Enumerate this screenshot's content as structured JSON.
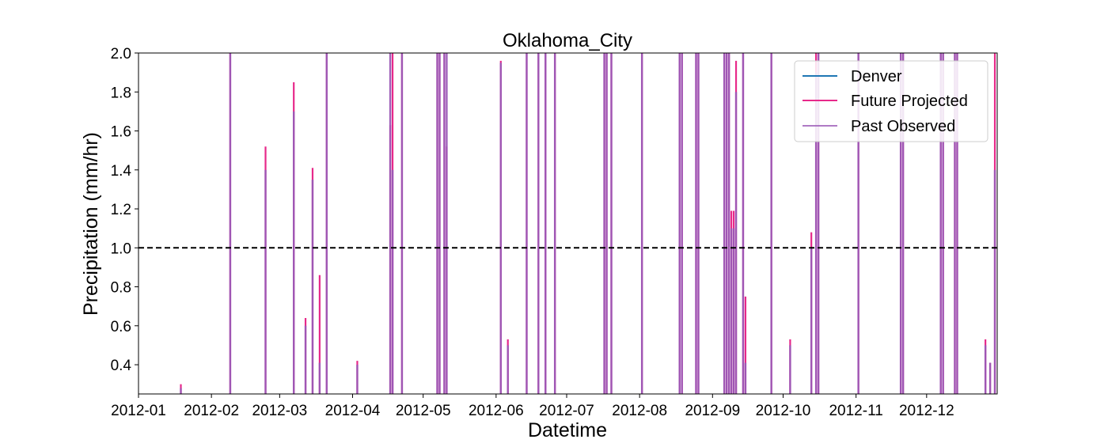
{
  "chart_data": {
    "type": "line",
    "title": "Oklahoma_City",
    "xlabel": "Datetime",
    "ylabel": "Precipitation (mm/hr)",
    "xlim": [
      "2012-01-01",
      "2012-12-31"
    ],
    "ylim": [
      0.25,
      2.0
    ],
    "x_ticks": [
      "2012-01",
      "2012-02",
      "2012-03",
      "2012-04",
      "2012-05",
      "2012-06",
      "2012-07",
      "2012-08",
      "2012-09",
      "2012-10",
      "2012-11",
      "2012-12"
    ],
    "y_ticks": [
      "0.4",
      "0.6",
      "0.8",
      "1.0",
      "1.2",
      "1.4",
      "1.6",
      "1.8",
      "2.0"
    ],
    "threshold": {
      "value": 1.0,
      "style": "dashed",
      "color": "#000000"
    },
    "legend": {
      "placement": "top-right",
      "entries": [
        "Denver",
        "Future Projected",
        "Past Observed"
      ]
    },
    "grid": false,
    "series": [
      {
        "name": "Denver",
        "color": "#1f77b4",
        "events": []
      },
      {
        "name": "Future Projected",
        "color": "#e7298a",
        "events": [
          [
            "2012-01-19",
            0.3
          ],
          [
            "2012-02-09",
            2.5
          ],
          [
            "2012-02-24",
            1.52
          ],
          [
            "2012-03-07",
            1.85
          ],
          [
            "2012-03-12",
            0.64
          ],
          [
            "2012-03-15",
            1.41
          ],
          [
            "2012-03-18",
            0.86
          ],
          [
            "2012-03-21",
            2.5
          ],
          [
            "2012-04-03",
            0.42
          ],
          [
            "2012-04-17",
            1.63
          ],
          [
            "2012-04-18",
            2.5
          ],
          [
            "2012-04-22",
            2.5
          ],
          [
            "2012-05-07",
            2.5
          ],
          [
            "2012-05-08",
            2.5
          ],
          [
            "2012-05-10",
            2.5
          ],
          [
            "2012-05-11",
            1.52
          ],
          [
            "2012-06-03",
            1.96
          ],
          [
            "2012-06-06",
            0.53
          ],
          [
            "2012-06-14",
            2.5
          ],
          [
            "2012-06-19",
            2.5
          ],
          [
            "2012-06-22",
            2.5
          ],
          [
            "2012-06-26",
            2.5
          ],
          [
            "2012-07-17",
            2.5
          ],
          [
            "2012-07-18",
            2.5
          ],
          [
            "2012-07-20",
            2.5
          ],
          [
            "2012-08-02",
            2.5
          ],
          [
            "2012-08-18",
            2.5
          ],
          [
            "2012-08-19",
            2.5
          ],
          [
            "2012-08-25",
            2.5
          ],
          [
            "2012-08-26",
            2.5
          ],
          [
            "2012-09-06",
            2.5
          ],
          [
            "2012-09-07",
            2.5
          ],
          [
            "2012-09-08",
            2.5
          ],
          [
            "2012-09-09",
            1.19
          ],
          [
            "2012-09-10",
            1.19
          ],
          [
            "2012-09-11",
            1.96
          ],
          [
            "2012-09-14",
            2.5
          ],
          [
            "2012-09-15",
            0.75
          ],
          [
            "2012-09-26",
            2.5
          ],
          [
            "2012-10-04",
            0.53
          ],
          [
            "2012-10-13",
            1.08
          ],
          [
            "2012-10-15",
            2.5
          ],
          [
            "2012-10-16",
            2.5
          ],
          [
            "2012-11-02",
            2.5
          ],
          [
            "2012-11-20",
            2.5
          ],
          [
            "2012-11-21",
            2.5
          ],
          [
            "2012-12-07",
            2.5
          ],
          [
            "2012-12-08",
            2.5
          ],
          [
            "2012-12-13",
            2.5
          ],
          [
            "2012-12-14",
            2.5
          ],
          [
            "2012-12-26",
            0.53
          ],
          [
            "2012-12-28",
            0.41
          ],
          [
            "2012-12-30",
            2.5
          ]
        ]
      },
      {
        "name": "Past Observed",
        "color": "#9b59b6",
        "events": [
          [
            "2012-01-19",
            0.28
          ],
          [
            "2012-02-09",
            2.5
          ],
          [
            "2012-02-24",
            1.4
          ],
          [
            "2012-03-07",
            1.7
          ],
          [
            "2012-03-12",
            0.6
          ],
          [
            "2012-03-15",
            1.35
          ],
          [
            "2012-03-18",
            0.41
          ],
          [
            "2012-03-21",
            2.5
          ],
          [
            "2012-04-03",
            0.4
          ],
          [
            "2012-04-17",
            2.5
          ],
          [
            "2012-04-18",
            1.4
          ],
          [
            "2012-04-22",
            2.5
          ],
          [
            "2012-05-07",
            2.5
          ],
          [
            "2012-05-08",
            2.5
          ],
          [
            "2012-05-10",
            2.5
          ],
          [
            "2012-05-11",
            2.5
          ],
          [
            "2012-06-03",
            1.95
          ],
          [
            "2012-06-06",
            0.5
          ],
          [
            "2012-06-14",
            2.5
          ],
          [
            "2012-06-19",
            2.5
          ],
          [
            "2012-06-22",
            2.5
          ],
          [
            "2012-06-26",
            2.5
          ],
          [
            "2012-07-17",
            2.5
          ],
          [
            "2012-07-18",
            2.5
          ],
          [
            "2012-07-20",
            2.5
          ],
          [
            "2012-08-02",
            2.5
          ],
          [
            "2012-08-18",
            2.5
          ],
          [
            "2012-08-19",
            2.5
          ],
          [
            "2012-08-25",
            2.5
          ],
          [
            "2012-08-26",
            2.5
          ],
          [
            "2012-09-06",
            2.5
          ],
          [
            "2012-09-07",
            2.5
          ],
          [
            "2012-09-08",
            2.5
          ],
          [
            "2012-09-09",
            1.1
          ],
          [
            "2012-09-10",
            1.1
          ],
          [
            "2012-09-11",
            1.8
          ],
          [
            "2012-09-14",
            2.5
          ],
          [
            "2012-09-15",
            0.41
          ],
          [
            "2012-09-26",
            2.5
          ],
          [
            "2012-10-04",
            0.5
          ],
          [
            "2012-10-13",
            1.0
          ],
          [
            "2012-10-15",
            1.9
          ],
          [
            "2012-10-16",
            2.5
          ],
          [
            "2012-11-02",
            2.5
          ],
          [
            "2012-11-20",
            2.5
          ],
          [
            "2012-11-21",
            2.5
          ],
          [
            "2012-12-07",
            2.5
          ],
          [
            "2012-12-08",
            2.5
          ],
          [
            "2012-12-13",
            2.5
          ],
          [
            "2012-12-14",
            2.5
          ],
          [
            "2012-12-26",
            0.5
          ],
          [
            "2012-12-28",
            0.41
          ],
          [
            "2012-12-30",
            1.4
          ]
        ]
      }
    ]
  }
}
